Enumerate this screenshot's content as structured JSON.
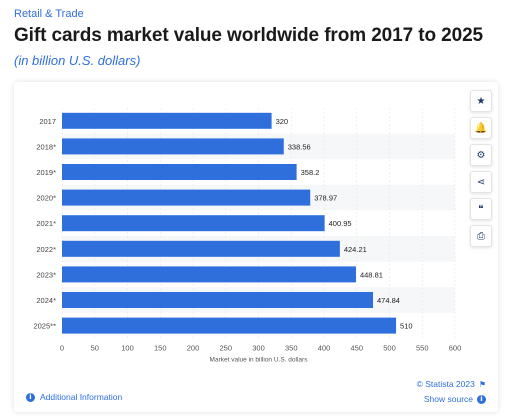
{
  "header": {
    "category": "Retail & Trade",
    "title": "Gift cards market value worldwide from 2017 to 2025",
    "subtitle": "(in billion U.S. dollars)"
  },
  "sidebar": {
    "tools": [
      {
        "name": "favorite-star-icon",
        "glyph": "★"
      },
      {
        "name": "notification-bell-icon",
        "glyph": "🔔"
      },
      {
        "name": "settings-gear-icon",
        "glyph": "⚙"
      },
      {
        "name": "share-icon",
        "glyph": "⋖"
      },
      {
        "name": "cite-quote-icon",
        "glyph": "❝"
      },
      {
        "name": "print-icon",
        "glyph": "⎙"
      }
    ]
  },
  "footer": {
    "additional_info": "Additional Information",
    "copyright": "© Statista 2023",
    "show_source": "Show source"
  },
  "chart_data": {
    "type": "bar",
    "orientation": "horizontal",
    "categories": [
      "2017",
      "2018*",
      "2019*",
      "2020*",
      "2021*",
      "2022*",
      "2023*",
      "2024*",
      "2025**"
    ],
    "values": [
      320,
      338.56,
      358.2,
      378.97,
      400.95,
      424.21,
      448.81,
      474.84,
      510
    ],
    "value_labels": [
      "320",
      "338.56",
      "358.2",
      "378.97",
      "400.95",
      "424.21",
      "448.81",
      "474.84",
      "510"
    ],
    "xlabel": "Market value in billion U.S. dollars",
    "xlim": [
      0,
      600
    ],
    "xticks": [
      0,
      50,
      100,
      150,
      200,
      250,
      300,
      350,
      400,
      450,
      500,
      550,
      600
    ],
    "grid": true,
    "bar_color": "#2e6fdc"
  }
}
